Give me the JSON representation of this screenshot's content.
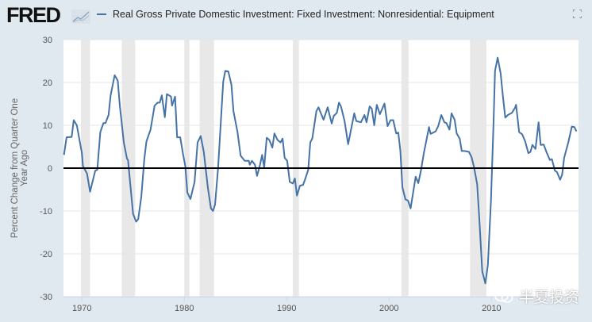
{
  "header": {
    "logo_text": "FRED",
    "series_title": "Real Gross Private Domestic Investment: Fixed Investment: Nonresidential: Equipment",
    "fullscreen_icon": "expand-icon"
  },
  "watermark": {
    "text": "半夏投资",
    "icon": "wechat-icon"
  },
  "colors": {
    "line": "#4572a7",
    "recession": "#e8e8e8",
    "background": "#e1e9f0",
    "zero_line": "#000000"
  },
  "chart_data": {
    "type": "line",
    "title": "Real Gross Private Domestic Investment: Fixed Investment: Nonresidential: Equipment",
    "xlabel": "",
    "ylabel": "Percent Change from Quarter One Year Ago",
    "xlim": [
      1968.2,
      2018.5
    ],
    "ylim": [
      -30,
      30
    ],
    "yticks": [
      -30,
      -20,
      -10,
      0,
      10,
      20,
      30
    ],
    "xticks": [
      1970,
      1980,
      1990,
      2000,
      2010
    ],
    "grid": true,
    "legend": "top-left",
    "recessions": [
      [
        1969.9,
        1970.8
      ],
      [
        1973.9,
        1975.2
      ],
      [
        1980.0,
        1980.5
      ],
      [
        1981.5,
        1982.9
      ],
      [
        1990.6,
        1991.2
      ],
      [
        2001.2,
        2001.9
      ],
      [
        2007.9,
        2009.5
      ]
    ],
    "series": [
      {
        "name": "Real Gross Private Domestic Investment: Fixed Investment: Nonresidential: Equipment",
        "x": [
          1968.25,
          1968.5,
          1969.0,
          1969.2,
          1969.5,
          1970.0,
          1970.1,
          1970.5,
          1970.8,
          1971.3,
          1971.5,
          1971.8,
          1972.1,
          1972.3,
          1972.6,
          1972.8,
          1973.2,
          1973.5,
          1973.7,
          1974.1,
          1974.4,
          1974.5,
          1975.0,
          1975.3,
          1975.5,
          1975.8,
          1976.1,
          1976.3,
          1976.7,
          1977.1,
          1977.4,
          1977.6,
          1977.8,
          1978.1,
          1978.3,
          1978.7,
          1978.8,
          1979.1,
          1979.3,
          1979.6,
          1979.9,
          1980.1,
          1980.3,
          1980.6,
          1981.0,
          1981.3,
          1981.6,
          1981.9,
          1982.3,
          1982.6,
          1982.8,
          1983.0,
          1983.3,
          1983.8,
          1984.0,
          1984.3,
          1984.6,
          1984.8,
          1985.2,
          1985.5,
          1985.9,
          1986.3,
          1986.4,
          1986.6,
          1986.9,
          1987.1,
          1987.4,
          1987.6,
          1987.8,
          1988.05,
          1988.3,
          1988.6,
          1988.8,
          1989.1,
          1989.4,
          1989.6,
          1989.8,
          1990.05,
          1990.3,
          1990.6,
          1990.8,
          1991.0,
          1991.3,
          1991.6,
          1991.8,
          1992.1,
          1992.3,
          1992.5,
          1992.9,
          1993.1,
          1993.6,
          1994.0,
          1994.4,
          1994.6,
          1994.9,
          1995.1,
          1995.3,
          1995.65,
          1996.0,
          1996.6,
          1996.8,
          1997.25,
          1997.6,
          1997.8,
          1998.1,
          1998.3,
          1998.55,
          1998.8,
          1999.1,
          1999.55,
          1999.85,
          2000.15,
          2000.4,
          2000.7,
          2000.9,
          2001.1,
          2001.3,
          2001.6,
          2001.85,
          2002.1,
          2002.6,
          2002.85,
          2003.1,
          2003.4,
          2003.6,
          2003.9,
          2004.05,
          2004.55,
          2004.8,
          2005.1,
          2005.4,
          2005.6,
          2005.9,
          2006.1,
          2006.4,
          2006.6,
          2006.9,
          2007.1,
          2007.4,
          2007.8,
          2008.05,
          2008.3,
          2008.6,
          2008.8,
          2009.1,
          2009.4,
          2009.65,
          2009.95,
          2010.2,
          2010.35,
          2010.6,
          2010.9,
          2011.1,
          2011.35,
          2011.6,
          2012.0,
          2012.3,
          2012.4,
          2012.7,
          2013.0,
          2013.3,
          2013.6,
          2013.8,
          2014.0,
          2014.3,
          2014.6,
          2014.8,
          2015.1,
          2015.4,
          2015.7,
          2015.9,
          2016.2,
          2016.4,
          2016.7,
          2016.9,
          2017.1,
          2017.5,
          2017.85,
          2018.1,
          2018.3
        ],
        "values": [
          3.1,
          7.2,
          7.3,
          11.2,
          10,
          3.5,
          0.5,
          -1.3,
          -5.5,
          -0.6,
          -0.4,
          8.4,
          10.5,
          10.5,
          12.4,
          17,
          21.7,
          20.4,
          14.6,
          5.9,
          2.2,
          1.9,
          -10.7,
          -12.5,
          -11.9,
          -6.6,
          2.2,
          6.2,
          9,
          14.6,
          15.3,
          15.3,
          17,
          11.9,
          17.3,
          16.7,
          14.6,
          16.7,
          7.2,
          7.2,
          2.9,
          0.5,
          -5.7,
          -7.2,
          -3.2,
          6,
          7.5,
          3.8,
          -4.5,
          -9.4,
          -10,
          -8.5,
          0,
          20.2,
          22.7,
          22.6,
          19.5,
          13.3,
          8.4,
          2.9,
          1.7,
          1.7,
          0.8,
          1.7,
          0.8,
          -1.8,
          0.8,
          3.1,
          0.2,
          7.1,
          6.6,
          4.8,
          8.1,
          6.6,
          6,
          6.9,
          2.4,
          1.7,
          -3.2,
          -3.6,
          -2.4,
          -6.4,
          -4.1,
          -3.9,
          -2.6,
          -0.4,
          6,
          6.9,
          13.3,
          14.2,
          11.3,
          14.2,
          10.4,
          12.2,
          12.9,
          15.3,
          14.4,
          11,
          5.6,
          12.8,
          11,
          10.7,
          12.4,
          10.7,
          14.4,
          13.9,
          10,
          14.8,
          12.6,
          15.1,
          9.8,
          11.2,
          11.2,
          8.1,
          8.3,
          4.1,
          -4.5,
          -7.3,
          -7.6,
          -9.4,
          -2,
          -3.5,
          -0.7,
          3.6,
          6,
          9.6,
          8,
          8.6,
          9.8,
          12.4,
          10.7,
          10.5,
          9,
          12.8,
          11.3,
          8.1,
          6.9,
          4,
          4,
          3.8,
          2.6,
          0.2,
          -3.8,
          -11.2,
          -24.1,
          -26.9,
          -22.6,
          -7.5,
          10.4,
          22.7,
          25.8,
          22.1,
          17.2,
          11.8,
          12.4,
          12.9,
          14.1,
          14.8,
          8.4,
          7.9,
          6.2,
          3.5,
          3.8,
          5.4,
          4.5,
          10.7,
          5.4,
          5.5,
          3.6,
          1.9,
          2.1,
          -0.6,
          -0.9,
          -2.7,
          -1.5,
          2.4,
          6,
          9.7,
          9.6,
          8.6
        ]
      }
    ]
  }
}
